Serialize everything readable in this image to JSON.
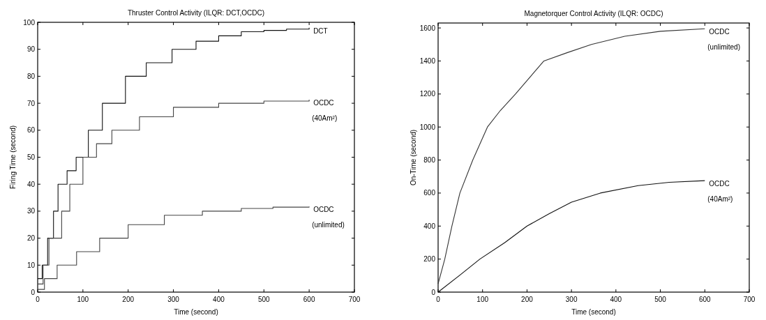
{
  "chart_data": [
    {
      "type": "step",
      "title": "Thruster Control Activity (ILQR: DCT,OCDC)",
      "xlabel": "Time (second)",
      "ylabel": "Firing Time (second)",
      "xlim": [
        0,
        700
      ],
      "xticks": [
        0,
        100,
        200,
        300,
        400,
        500,
        600,
        700
      ],
      "ylim": [
        0,
        100
      ],
      "yticks": [
        0,
        10,
        20,
        30,
        40,
        50,
        60,
        70,
        80,
        90,
        100
      ],
      "grid": false,
      "series": [
        {
          "name": "DCT",
          "color": "#111111",
          "x": [
            0,
            10,
            22,
            35,
            45,
            65,
            85,
            112,
            143,
            194,
            240,
            297,
            350,
            400,
            450,
            500,
            550,
            600
          ],
          "values": [
            5,
            10,
            20,
            30,
            40,
            45,
            50,
            60,
            70,
            80,
            85,
            90,
            93,
            95,
            96.5,
            97,
            97.5,
            98
          ]
        },
        {
          "name": "OCDC (40Am²)",
          "color": "#444444",
          "x": [
            0,
            12,
            25,
            53,
            71,
            100,
            130,
            164,
            225,
            300,
            400,
            500,
            600
          ],
          "values": [
            3,
            10,
            20,
            30,
            40,
            50,
            55,
            60,
            65,
            68.5,
            70,
            70.8,
            71.3
          ]
        },
        {
          "name": "OCDC (unlimited)",
          "color": "#444444",
          "x": [
            0,
            15,
            43,
            86,
            137,
            200,
            280,
            364,
            450,
            520,
            600
          ],
          "values": [
            1,
            5,
            10,
            15,
            20,
            25,
            28.5,
            30,
            31,
            31.5,
            31.7
          ]
        }
      ]
    },
    {
      "type": "line",
      "title": "Magnetorquer Control Activity (ILQR: OCDC)",
      "xlabel": "Time (second)",
      "ylabel": "On-Time (second)",
      "xlim": [
        0,
        700
      ],
      "xticks": [
        0,
        100,
        200,
        300,
        400,
        500,
        600,
        700
      ],
      "ylim": [
        0,
        1630
      ],
      "yticks": [
        0,
        200,
        400,
        600,
        800,
        1000,
        1200,
        1400,
        1600
      ],
      "grid": false,
      "series": [
        {
          "name": "OCDC (unlimited)",
          "color": "#333333",
          "x": [
            0,
            15,
            31,
            49,
            78,
            111,
            140,
            174,
            238,
            290,
            345,
            420,
            500,
            600
          ],
          "values": [
            50,
            200,
            400,
            600,
            800,
            1000,
            1100,
            1200,
            1400,
            1450,
            1500,
            1550,
            1580,
            1595
          ]
        },
        {
          "name": "OCDC (40Am²)",
          "color": "#111111",
          "x": [
            0,
            50,
            94,
            150,
            200,
            250,
            300,
            365,
            450,
            520,
            600
          ],
          "values": [
            0,
            105,
            200,
            300,
            400,
            475,
            545,
            600,
            645,
            665,
            675
          ]
        }
      ]
    }
  ]
}
